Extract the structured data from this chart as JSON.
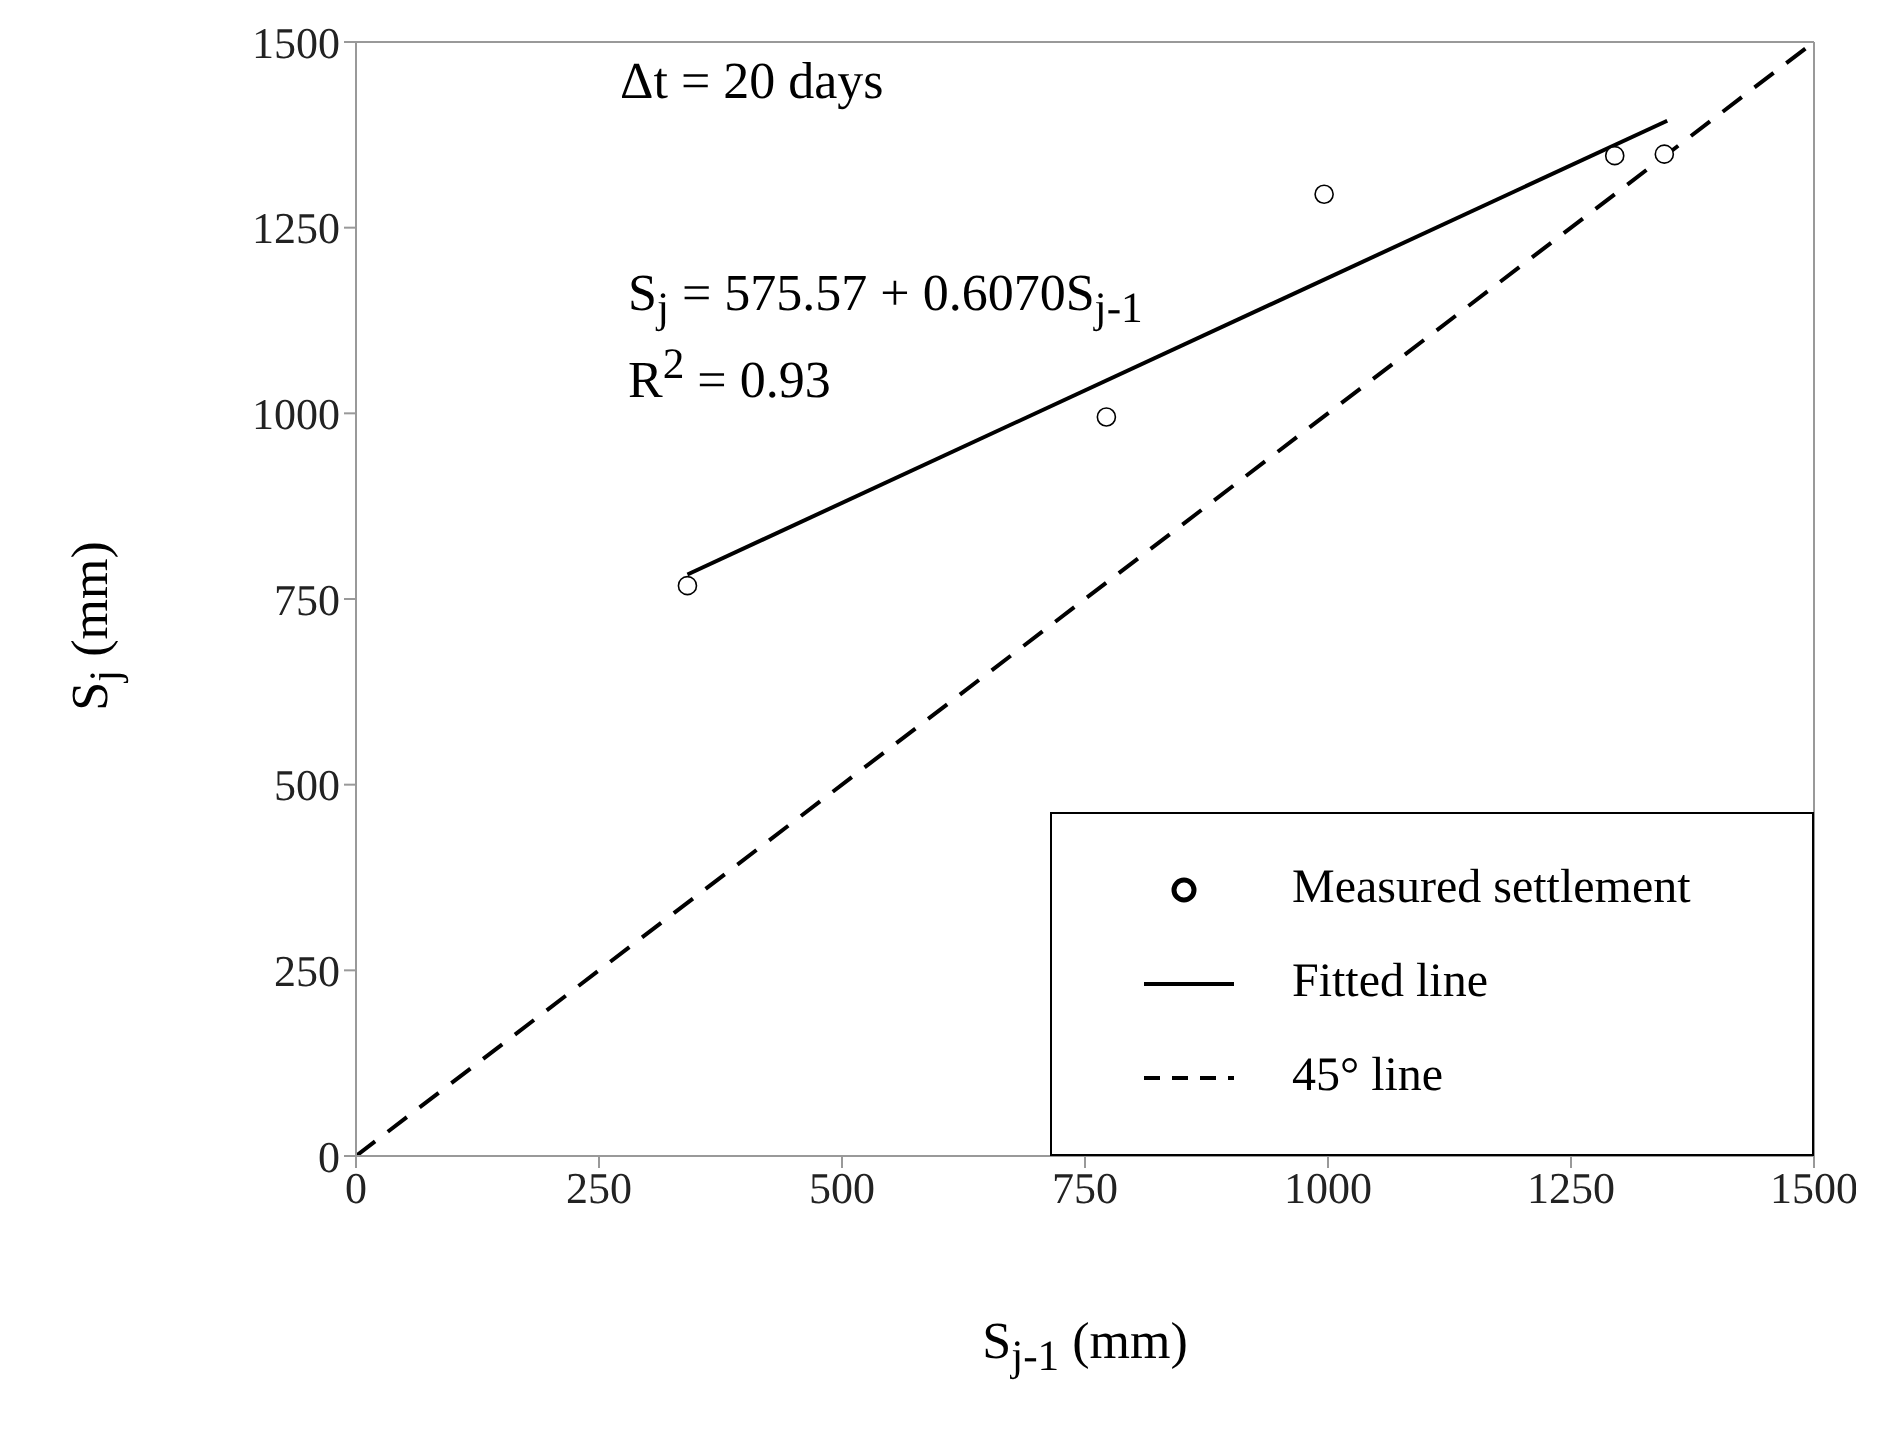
{
  "chart_data": {
    "type": "scatter",
    "xlabel": "S$_{j-1}$ (mm)",
    "ylabel": "S$_{j}$ (mm)",
    "annotations": [
      "Δt = 20 days",
      "S$_{j}$ = 575.57 + 0.6070S$_{j-1}$",
      "R$^{2}$ = 0.93"
    ],
    "series": [
      {
        "name": "Measured settlement",
        "color": "#000000",
        "marker": "circle",
        "x": [
          341,
          772,
          996,
          1295,
          1346
        ],
        "values": [
          768,
          995,
          1295,
          1347,
          1349
        ]
      },
      {
        "name": "Fitted line",
        "type": "line",
        "color": "#000000",
        "line_style": "solid",
        "marker": "none",
        "x": [
          341,
          1349
        ],
        "values": [
          783,
          1394
        ]
      },
      {
        "name": "45° line",
        "type": "line",
        "color": "#000000",
        "line_style": "dashed",
        "marker": "none",
        "x": [
          0,
          1500
        ],
        "values": [
          0,
          1500
        ]
      }
    ],
    "xlim": [
      0,
      1500
    ],
    "xticks": [
      0,
      250,
      500,
      750,
      1000,
      1250,
      1500
    ],
    "ylim": [
      0,
      1500
    ],
    "yticks": [
      0,
      250,
      500,
      750,
      1000,
      1250,
      1500
    ],
    "grid": false,
    "legend": "bottom right"
  }
}
